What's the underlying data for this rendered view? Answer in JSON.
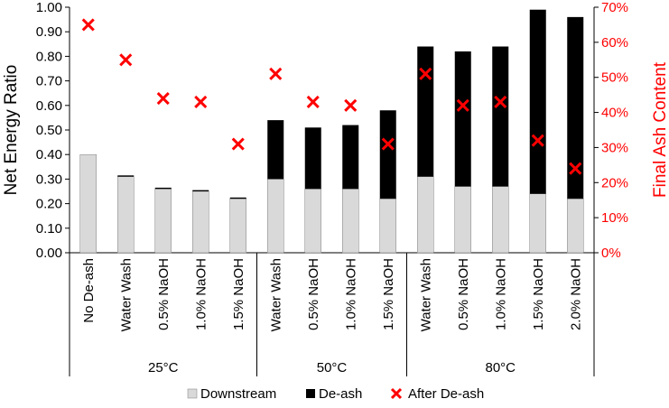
{
  "chart_data": {
    "type": "bar",
    "stacked": true,
    "ylabel": "Net Energy Ratio",
    "y2label": "Final Ash Content",
    "ylim": [
      0,
      1.0
    ],
    "y2lim": [
      0,
      0.7
    ],
    "yticks": [
      "0.00",
      "0.10",
      "0.20",
      "0.30",
      "0.40",
      "0.50",
      "0.60",
      "0.70",
      "0.80",
      "0.90",
      "1.00"
    ],
    "y2ticks": [
      "0%",
      "10%",
      "20%",
      "30%",
      "40%",
      "50%",
      "60%",
      "70%"
    ],
    "categories": [
      "No De-ash",
      "Water Wash",
      "0.5% NaOH",
      "1.0% NaOH",
      "1.5% NaOH",
      "Water Wash",
      "0.5% NaOH",
      "1.0% NaOH",
      "1.5% NaOH",
      "Water Wash",
      "0.5% NaOH",
      "1.0% NaOH",
      "1.5% NaOH",
      "2.0% NaOH"
    ],
    "groups": [
      {
        "label": "25°C",
        "start": 0,
        "end": 5
      },
      {
        "label": "50°C",
        "start": 5,
        "end": 9
      },
      {
        "label": "80°C",
        "start": 9,
        "end": 14
      }
    ],
    "series": [
      {
        "name": "Downstream",
        "type": "bar",
        "axis": "left",
        "color": "#d9d9d9",
        "values": [
          0.4,
          0.31,
          0.26,
          0.25,
          0.22,
          0.3,
          0.26,
          0.26,
          0.22,
          0.31,
          0.27,
          0.27,
          0.24,
          0.22
        ]
      },
      {
        "name": "De-ash",
        "type": "bar",
        "axis": "left",
        "color": "#000000",
        "values": [
          0.0,
          0.005,
          0.005,
          0.005,
          0.005,
          0.24,
          0.25,
          0.26,
          0.36,
          0.53,
          0.55,
          0.57,
          0.75,
          0.74
        ]
      },
      {
        "name": "After De-ash",
        "type": "scatter",
        "axis": "right",
        "color": "#ff0000",
        "values": [
          0.65,
          0.55,
          0.44,
          0.43,
          0.31,
          0.51,
          0.43,
          0.42,
          0.31,
          0.51,
          0.42,
          0.43,
          0.32,
          0.24
        ]
      }
    ],
    "legend_position": "bottom",
    "grid": false
  }
}
